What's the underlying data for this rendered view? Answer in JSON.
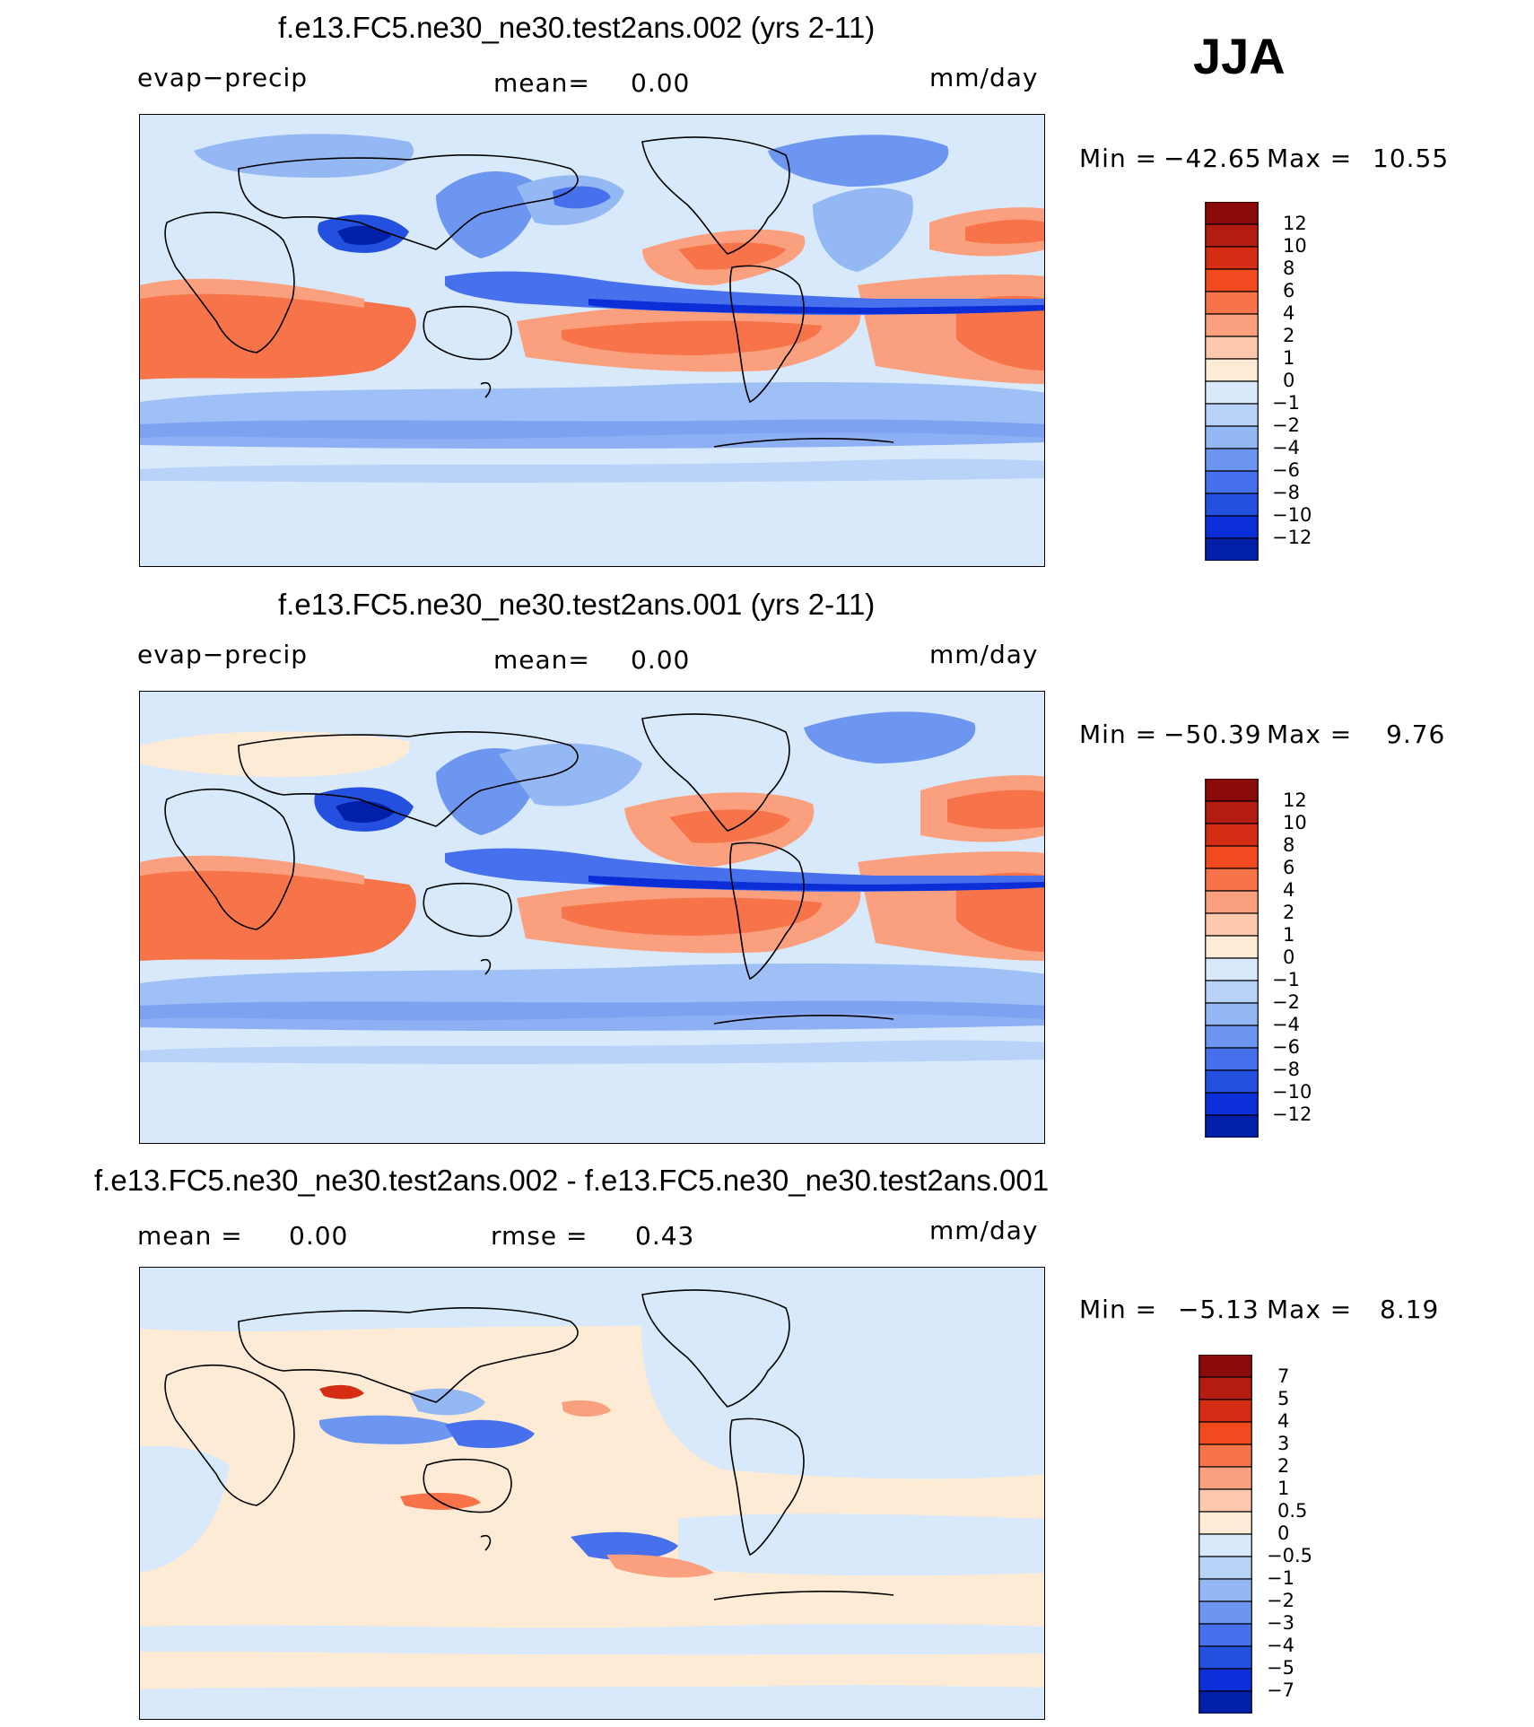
{
  "season": "JJA",
  "panels": [
    {
      "title": "f.e13.FC5.ne30_ne30.test2ans.002 (yrs 2-11)",
      "left_label": "evap−precip",
      "center_label": "mean=",
      "center_value": "0.00",
      "units": "mm/day",
      "min_label": "Min",
      "min_value": "−42.65",
      "max_label": "Max",
      "max_value": "10.55",
      "colorbar": {
        "labels": [
          "12",
          "10",
          "8",
          "6",
          "4",
          "2",
          "1",
          "0",
          "−1",
          "−2",
          "−4",
          "−6",
          "−8",
          "−10",
          "−12"
        ],
        "colors": [
          "#8b0a0a",
          "#b31c10",
          "#d52c14",
          "#f04a1e",
          "#f7744a",
          "#fba07e",
          "#fdc8ae",
          "#fdebd6",
          "#d8e9fb",
          "#b9d3f8",
          "#94b8f4",
          "#6d96f0",
          "#4670ec",
          "#2450e0",
          "#0c2ed8",
          "#021fa8"
        ]
      }
    },
    {
      "title": "f.e13.FC5.ne30_ne30.test2ans.001 (yrs 2-11)",
      "left_label": "evap−precip",
      "center_label": "mean=",
      "center_value": "0.00",
      "units": "mm/day",
      "min_label": "Min",
      "min_value": "−50.39",
      "max_label": "Max",
      "max_value": "9.76",
      "colorbar": {
        "labels": [
          "12",
          "10",
          "8",
          "6",
          "4",
          "2",
          "1",
          "0",
          "−1",
          "−2",
          "−4",
          "−6",
          "−8",
          "−10",
          "−12"
        ],
        "colors": [
          "#8b0a0a",
          "#b31c10",
          "#d52c14",
          "#f04a1e",
          "#f7744a",
          "#fba07e",
          "#fdc8ae",
          "#fdebd6",
          "#d8e9fb",
          "#b9d3f8",
          "#94b8f4",
          "#6d96f0",
          "#4670ec",
          "#2450e0",
          "#0c2ed8",
          "#021fa8"
        ]
      }
    },
    {
      "title": "f.e13.FC5.ne30_ne30.test2ans.002 - f.e13.FC5.ne30_ne30.test2ans.001",
      "left_label": "mean =",
      "left_value": "0.00",
      "center_label": "rmse =",
      "center_value": "0.43",
      "units": "mm/day",
      "min_label": "Min",
      "min_value": "−5.13",
      "max_label": "Max",
      "max_value": "8.19",
      "colorbar": {
        "labels": [
          "7",
          "5",
          "4",
          "3",
          "2",
          "1",
          "0.5",
          "0",
          "−0.5",
          "−1",
          "−2",
          "−3",
          "−4",
          "−5",
          "−7"
        ],
        "colors": [
          "#8b0a0a",
          "#b31c10",
          "#d52c14",
          "#f04a1e",
          "#f7744a",
          "#fba07e",
          "#fdc8ae",
          "#fdebd6",
          "#d8e9fb",
          "#b9d3f8",
          "#94b8f4",
          "#6d96f0",
          "#4670ec",
          "#2450e0",
          "#0c2ed8",
          "#021fa8"
        ]
      }
    }
  ]
}
